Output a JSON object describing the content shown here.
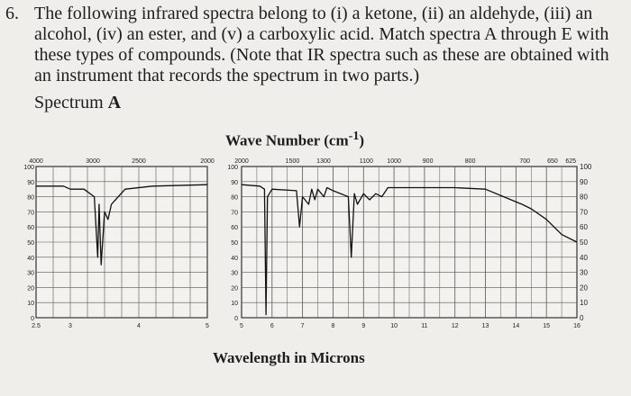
{
  "question": {
    "number": "6.",
    "line1": "The following infrared spectra belong to (i) a ketone, (ii) an aldehyde, (iii) an",
    "line2": "alcohol, (iv) an ester, and (v) a carboxylic acid. Match spectra A through E with",
    "line3": "these types of compounds. (Note that IR spectra such as these are obtained with",
    "line4": "an instrument that records the spectrum in two parts.)",
    "spectrum_label": "Spectrum",
    "spectrum_letter": "A"
  },
  "chart_data": {
    "type": "line",
    "title_top": "Wave Number (cm",
    "title_top_sup": "-1",
    "title_top_end": ")",
    "xlabel": "Wavelength in Microns",
    "ylabel": "",
    "ylim": [
      0,
      100
    ],
    "left_panel": {
      "wavenumber_ticks": [
        "4000",
        "3000",
        "2500",
        "2000"
      ],
      "micron_ticks": [
        "2.5",
        "3",
        "4",
        "5"
      ],
      "y_ticks": [
        "100",
        "90",
        "80",
        "70",
        "60",
        "50",
        "40",
        "30",
        "20",
        "10",
        "0"
      ],
      "x_microns": [
        2.5,
        2.9,
        3.0,
        3.2,
        3.35,
        3.4,
        3.42,
        3.45,
        3.5,
        3.55,
        3.6,
        3.8,
        4.2,
        5.0
      ],
      "y_transmittance": [
        87,
        87,
        85,
        85,
        80,
        40,
        75,
        35,
        70,
        65,
        75,
        85,
        87,
        88
      ]
    },
    "right_panel": {
      "wavenumber_ticks": [
        "2000",
        "1500",
        "1300",
        "1100",
        "1000",
        "900",
        "800",
        "700",
        "650",
        "625"
      ],
      "micron_ticks": [
        "5",
        "6",
        "7",
        "8",
        "9",
        "10",
        "11",
        "12",
        "13",
        "14",
        "15",
        "16"
      ],
      "y_ticks_left": [
        "100",
        "90",
        "80",
        "70",
        "60",
        "50",
        "40",
        "30",
        "20",
        "10",
        "0"
      ],
      "y_ticks_right": [
        "100",
        "90",
        "80",
        "70",
        "60",
        "50",
        "40",
        "30",
        "20",
        "10",
        "0"
      ],
      "x_microns": [
        5.0,
        5.6,
        5.75,
        5.8,
        5.85,
        6.0,
        6.8,
        6.9,
        7.0,
        7.2,
        7.3,
        7.4,
        7.5,
        7.7,
        7.8,
        8.0,
        8.5,
        8.6,
        8.7,
        8.8,
        9.0,
        9.2,
        9.4,
        9.6,
        9.8,
        10.0,
        11.0,
        12.0,
        13.0,
        13.6,
        14.2,
        14.5,
        15.0,
        15.5,
        16.0
      ],
      "y_transmittance": [
        88,
        87,
        85,
        2,
        80,
        85,
        84,
        60,
        80,
        75,
        85,
        78,
        85,
        80,
        86,
        84,
        80,
        40,
        82,
        75,
        82,
        78,
        82,
        80,
        86,
        86,
        86,
        86,
        85,
        80,
        75,
        72,
        65,
        55,
        50
      ]
    }
  }
}
